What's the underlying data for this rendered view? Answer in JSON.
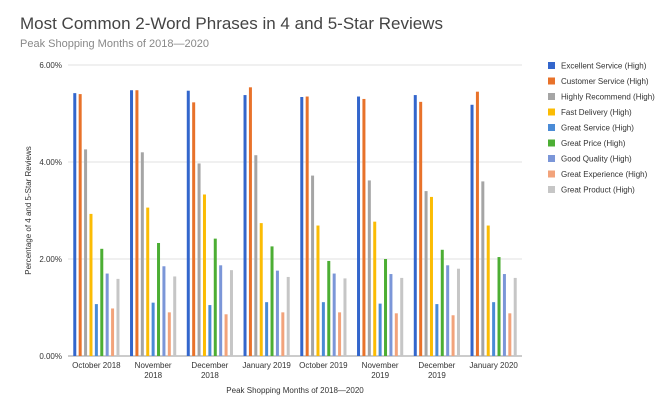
{
  "chart_data": {
    "type": "bar",
    "title": "Most Common 2-Word Phrases in 4 and 5-Star Reviews",
    "subtitle": "Peak Shopping Months of 2018—2020",
    "xlabel": "Peak Shopping Months of 2018—2020",
    "ylabel": "Percentage of 4 and 5-Star Reviews",
    "ylim": [
      0,
      6
    ],
    "yticks": [
      "0.00%",
      "2.00%",
      "4.00%",
      "6.00%"
    ],
    "grid": true,
    "legend_position": "right",
    "categories": [
      [
        "October 2018"
      ],
      [
        "November",
        "2018"
      ],
      [
        "December",
        "2018"
      ],
      [
        "January 2019"
      ],
      [
        "October 2019"
      ],
      [
        "November",
        "2019"
      ],
      [
        "December",
        "2019"
      ],
      [
        "January 2020"
      ]
    ],
    "series": [
      {
        "name": "Excellent Service (High)",
        "color": "#3366cc",
        "values": [
          5.42,
          5.48,
          5.47,
          5.38,
          5.34,
          5.35,
          5.38,
          5.18
        ]
      },
      {
        "name": "Customer Service (High)",
        "color": "#e8722a",
        "values": [
          5.4,
          5.48,
          5.23,
          5.54,
          5.35,
          5.3,
          5.24,
          5.45
        ]
      },
      {
        "name": "Highly Recommend (High)",
        "color": "#a5a5a5",
        "values": [
          4.26,
          4.2,
          3.97,
          4.14,
          3.72,
          3.62,
          3.4,
          3.6
        ]
      },
      {
        "name": "Fast Delivery (High)",
        "color": "#fbbc04",
        "values": [
          2.93,
          3.06,
          3.33,
          2.74,
          2.69,
          2.77,
          3.28,
          2.69
        ]
      },
      {
        "name": "Great Service (High)",
        "color": "#4a8bd6",
        "values": [
          1.07,
          1.1,
          1.05,
          1.11,
          1.11,
          1.08,
          1.07,
          1.11
        ]
      },
      {
        "name": "Great Price (High)",
        "color": "#4cae34",
        "values": [
          2.21,
          2.33,
          2.42,
          2.26,
          1.96,
          2.0,
          2.19,
          2.04
        ]
      },
      {
        "name": "Good Quality (High)",
        "color": "#7b96d8",
        "values": [
          1.7,
          1.85,
          1.87,
          1.76,
          1.7,
          1.69,
          1.87,
          1.69
        ]
      },
      {
        "name": "Great Experience (High)",
        "color": "#f2a37b",
        "values": [
          0.98,
          0.9,
          0.86,
          0.9,
          0.9,
          0.88,
          0.84,
          0.88
        ]
      },
      {
        "name": "Great Product (High)",
        "color": "#c6c6c6",
        "values": [
          1.59,
          1.64,
          1.77,
          1.63,
          1.6,
          1.61,
          1.8,
          1.61
        ]
      }
    ]
  }
}
